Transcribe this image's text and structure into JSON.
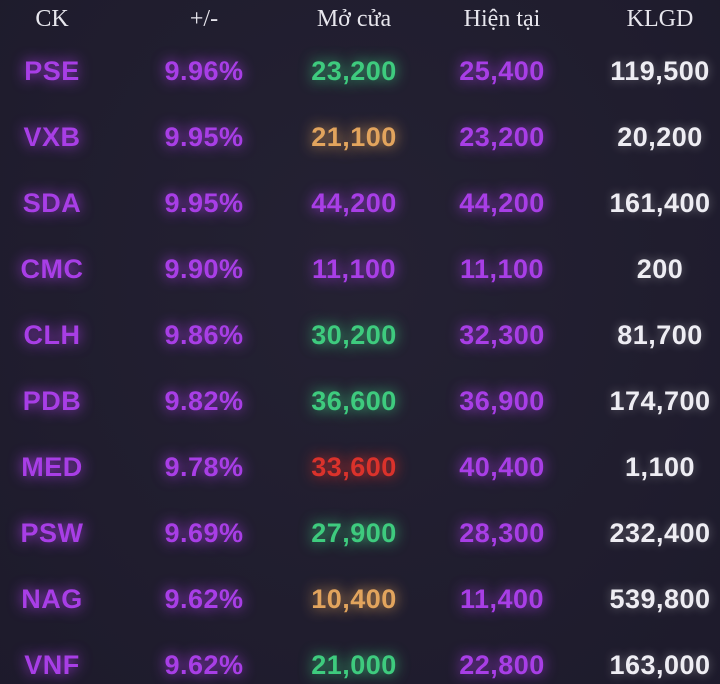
{
  "colors": {
    "background": "#1f1c2e",
    "purple": "#a83ee6",
    "green": "#3ecb7e",
    "orange": "#e2a45d",
    "red": "#da322b",
    "white": "#eeedf3",
    "header_text": "#e7e6ed"
  },
  "table": {
    "columns": [
      {
        "key": "ck",
        "label": "CK"
      },
      {
        "key": "change",
        "label": "+/-"
      },
      {
        "key": "open",
        "label": "Mở cửa"
      },
      {
        "key": "current",
        "label": "Hiện tại"
      },
      {
        "key": "volume",
        "label": "KLGD"
      }
    ],
    "rows": [
      {
        "ck": "PSE",
        "change": "9.96%",
        "open": "23,200",
        "open_color": "green",
        "current": "25,400",
        "volume": "119,500"
      },
      {
        "ck": "VXB",
        "change": "9.95%",
        "open": "21,100",
        "open_color": "orange",
        "current": "23,200",
        "volume": "20,200"
      },
      {
        "ck": "SDA",
        "change": "9.95%",
        "open": "44,200",
        "open_color": "purple",
        "current": "44,200",
        "volume": "161,400"
      },
      {
        "ck": "CMC",
        "change": "9.90%",
        "open": "11,100",
        "open_color": "purple",
        "current": "11,100",
        "volume": "200"
      },
      {
        "ck": "CLH",
        "change": "9.86%",
        "open": "30,200",
        "open_color": "green",
        "current": "32,300",
        "volume": "81,700"
      },
      {
        "ck": "PDB",
        "change": "9.82%",
        "open": "36,600",
        "open_color": "green",
        "current": "36,900",
        "volume": "174,700"
      },
      {
        "ck": "MED",
        "change": "9.78%",
        "open": "33,600",
        "open_color": "red",
        "current": "40,400",
        "volume": "1,100"
      },
      {
        "ck": "PSW",
        "change": "9.69%",
        "open": "27,900",
        "open_color": "green",
        "current": "28,300",
        "volume": "232,400"
      },
      {
        "ck": "NAG",
        "change": "9.62%",
        "open": "10,400",
        "open_color": "orange",
        "current": "11,400",
        "volume": "539,800"
      },
      {
        "ck": "VNF",
        "change": "9.62%",
        "open": "21,000",
        "open_color": "green",
        "current": "22,800",
        "volume": "163,000"
      }
    ]
  }
}
